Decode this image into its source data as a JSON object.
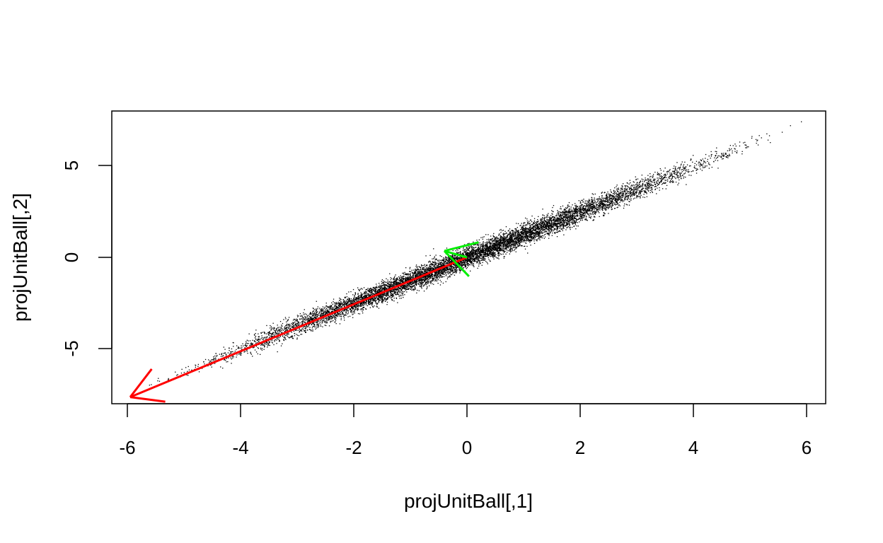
{
  "chart_data": {
    "type": "scatter",
    "title": "",
    "xlabel": "projUnitBall[,1]",
    "ylabel": "projUnitBall[,2]",
    "xlim": [
      -6.3,
      6.3
    ],
    "ylim": [
      -8.1,
      8.1
    ],
    "x_ticks": [
      "-6",
      "-4",
      "-2",
      "0",
      "2",
      "4",
      "6"
    ],
    "y_ticks": [
      "-5",
      "0",
      "5"
    ],
    "grid": false,
    "legend": "none",
    "point_color": "#000000",
    "point_cloud": {
      "description_free": true,
      "n_points": 9000,
      "x_range": [
        -5.9,
        5.9
      ],
      "slope": 1.24,
      "band_half_width_y": 0.55,
      "extreme_points": [
        [
          -5.9,
          -7.3
        ],
        [
          5.9,
          7.4
        ]
      ]
    },
    "arrows": [
      {
        "color": "#ff0000",
        "from": [
          0.0,
          0.0
        ],
        "to": [
          -5.95,
          -7.6
        ]
      },
      {
        "color": "#00ee00",
        "from": [
          0.0,
          0.0
        ],
        "to": [
          -0.4,
          0.35
        ]
      }
    ]
  }
}
